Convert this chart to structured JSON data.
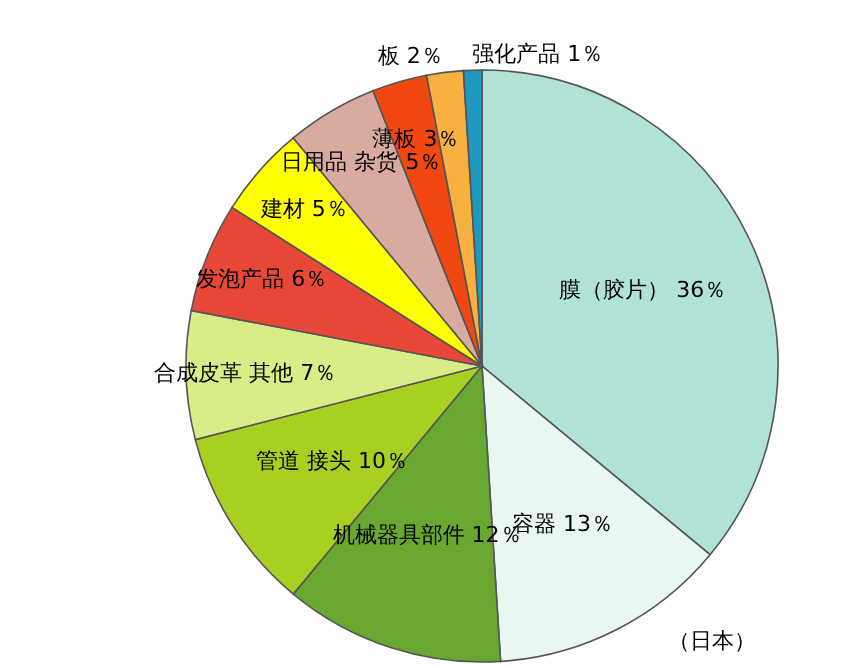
{
  "chart_data": {
    "type": "pie",
    "categories": [
      "膜（胶片）",
      "容器",
      "机械器具部件",
      "管道 接头",
      "合成皮革 其他",
      "发泡产品",
      "建材",
      "日用品 杂货",
      "薄板",
      "板",
      "强化产品"
    ],
    "values": [
      36,
      13,
      12,
      10,
      7,
      6,
      5,
      5,
      3,
      2,
      1
    ],
    "value_labels": [
      "36％",
      "13％",
      "12％",
      "10％",
      "7％",
      "6％",
      "5％",
      "5％",
      "3％",
      "2％",
      "1％"
    ],
    "colors": [
      "#b0e2d8",
      "#e8f8f0",
      "#68a830",
      "#a8d020",
      "#d8ec88",
      "#e84838",
      "#ffff00",
      "#d8aaa0",
      "#f04810",
      "#f8b040",
      "#2098c0"
    ],
    "legend": false,
    "annotations": [
      "（日本）"
    ]
  }
}
